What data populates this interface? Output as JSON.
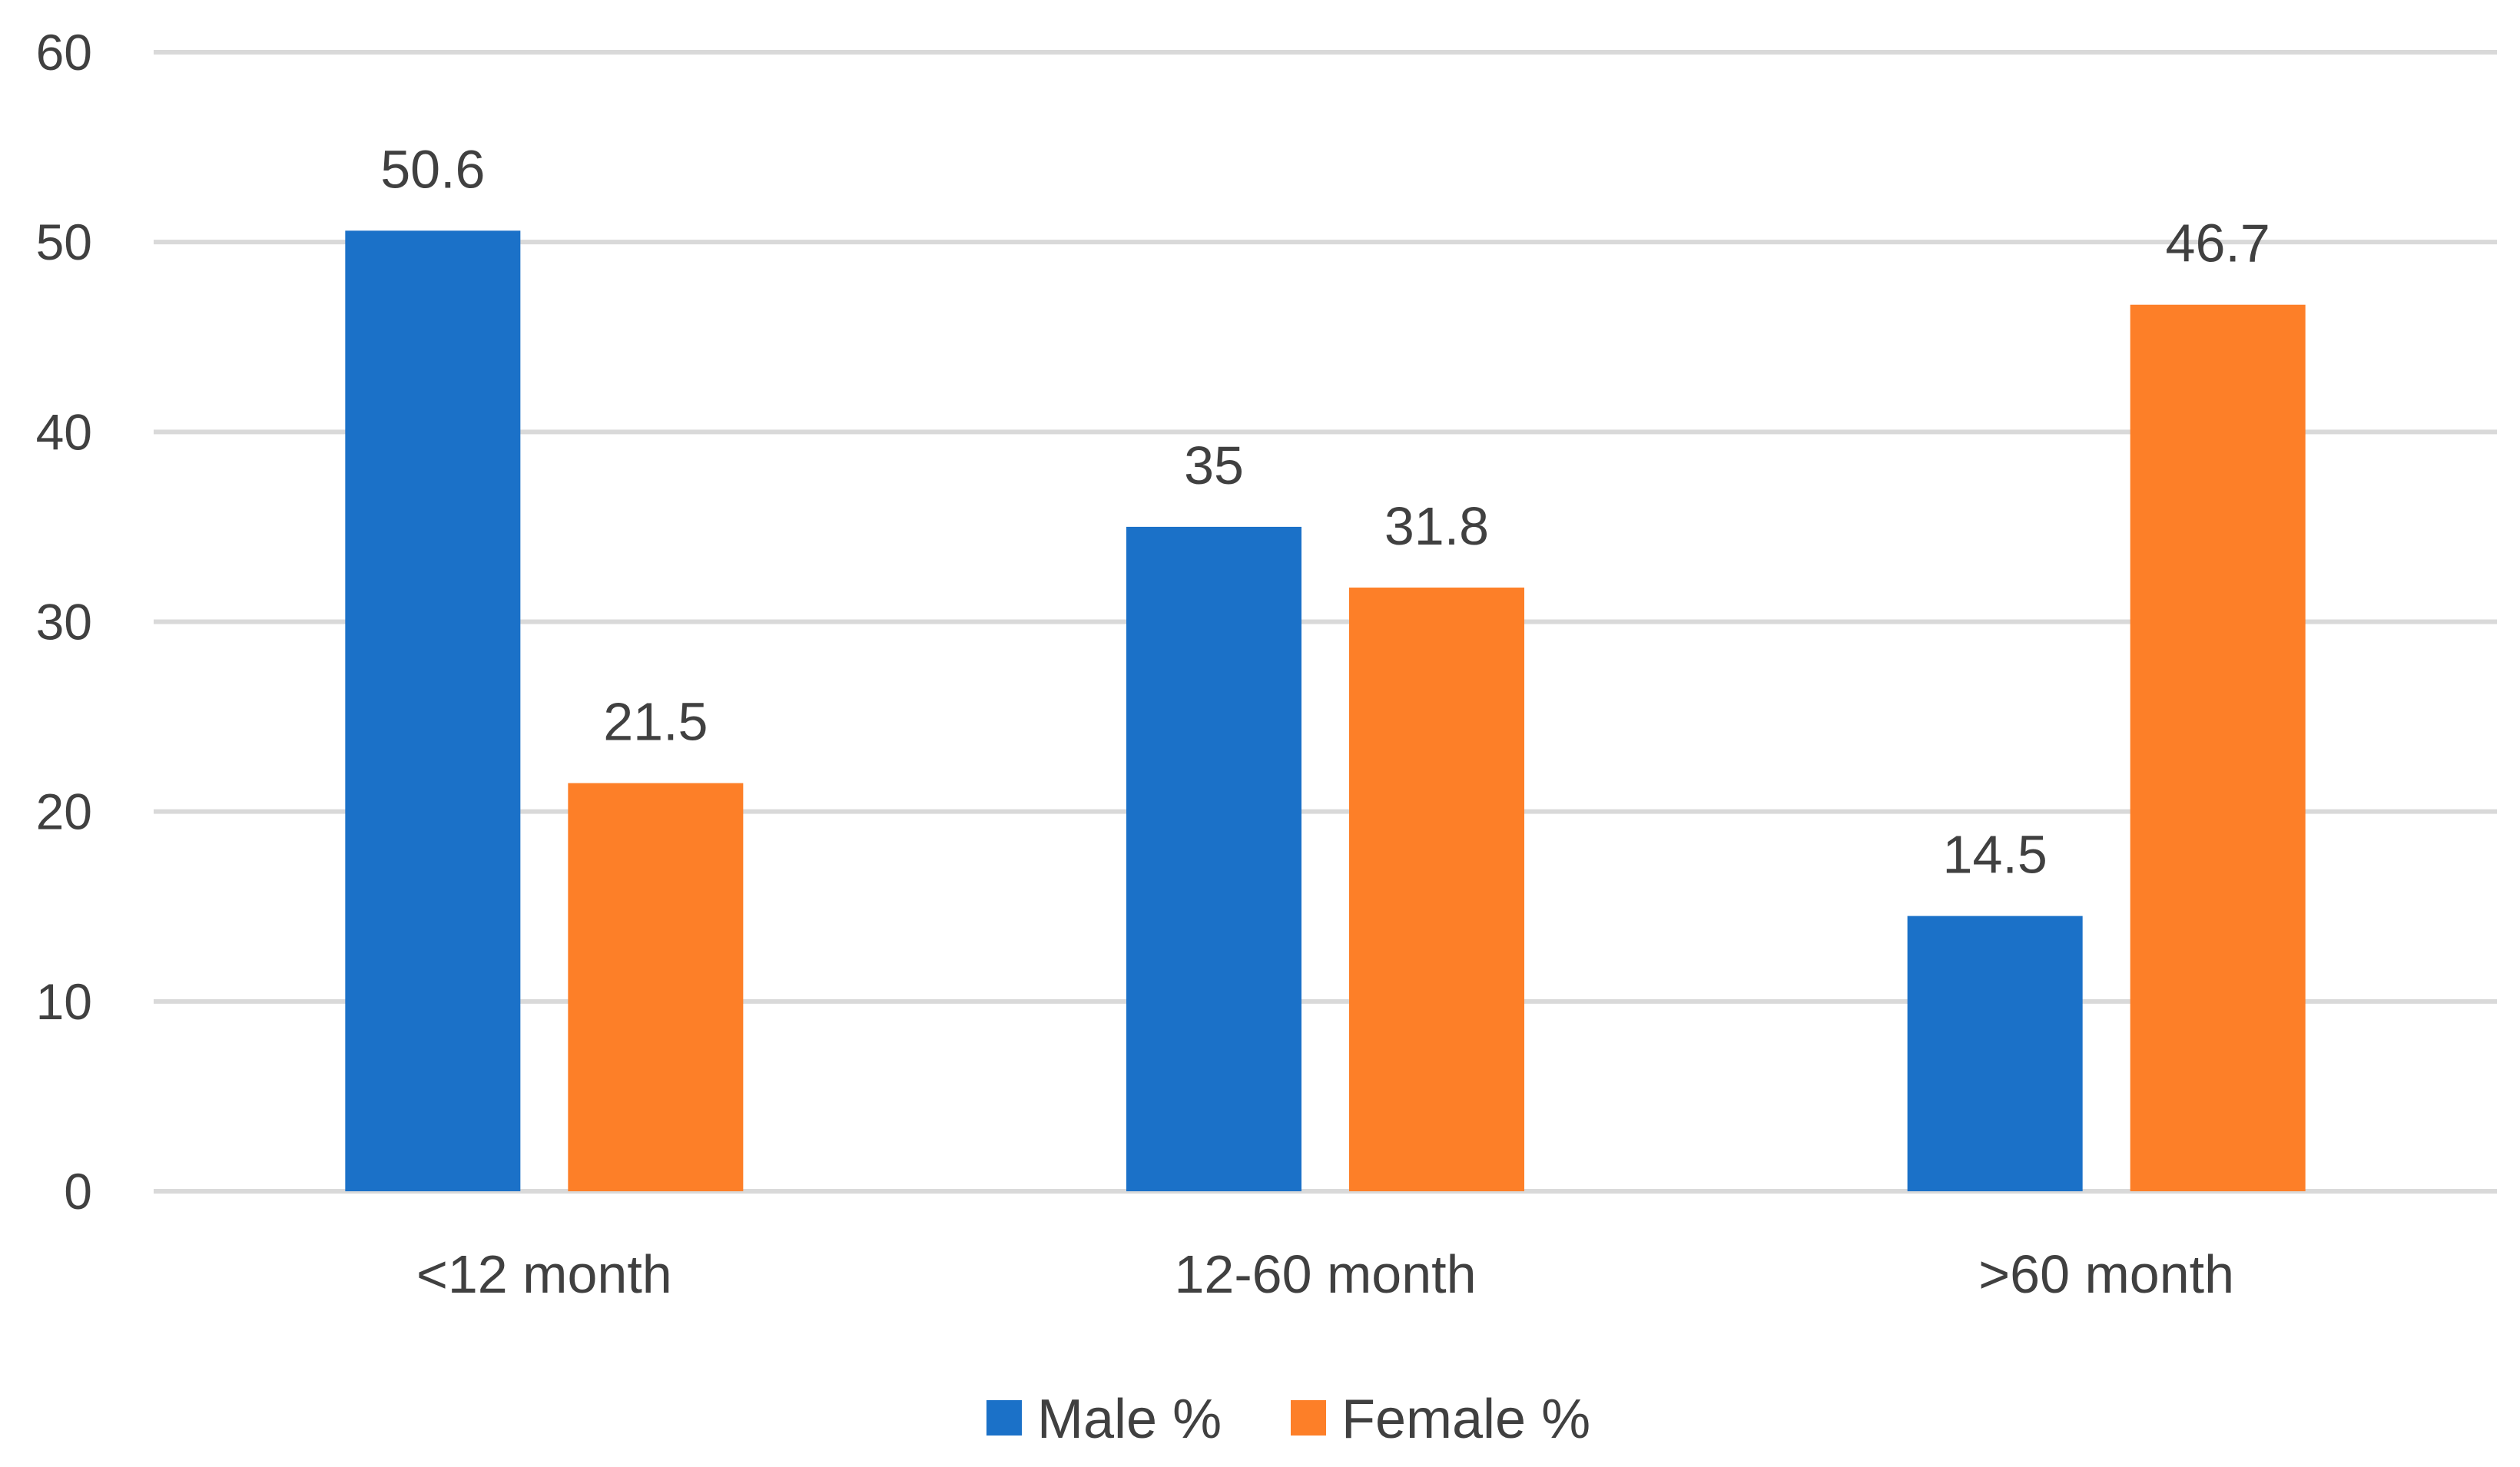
{
  "chart_data": {
    "type": "bar",
    "title": "",
    "xlabel": "",
    "ylabel": "",
    "ylim": [
      0,
      60
    ],
    "yticks": [
      0,
      10,
      20,
      30,
      40,
      50,
      60
    ],
    "ytick_labels": [
      "0",
      "10",
      "20",
      "30",
      "40",
      "50",
      "60"
    ],
    "grid": true,
    "legend_position": "bottom",
    "categories": [
      "<12 month",
      "12-60 month",
      ">60 month"
    ],
    "series": [
      {
        "name": "Male %",
        "color": "#1b71c8",
        "values": [
          50.6,
          35,
          14.5
        ],
        "labels": [
          "50.6",
          "35",
          "14.5"
        ]
      },
      {
        "name": "Female %",
        "color": "#fd7f28",
        "values": [
          21.5,
          31.8,
          46.7
        ],
        "labels": [
          "21.5",
          "31.8",
          "46.7"
        ]
      }
    ]
  }
}
